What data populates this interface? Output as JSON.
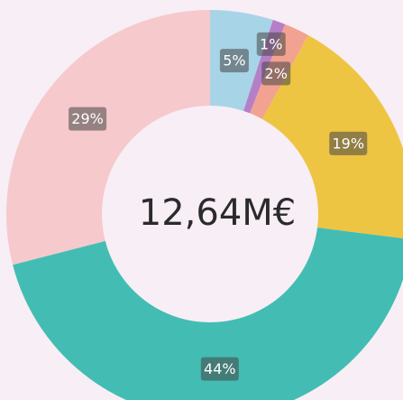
{
  "chart_data": {
    "type": "pie",
    "center_label": "12,64M€",
    "values": [
      5,
      1,
      2,
      19,
      44,
      29
    ],
    "value_labels": [
      "5%",
      "1%",
      "2%",
      "19%",
      "44%",
      "29%"
    ],
    "colors": [
      "#a8d4e8",
      "#b57fc8",
      "#f2a291",
      "#eec443",
      "#43bdb4",
      "#f6c9cd"
    ]
  }
}
